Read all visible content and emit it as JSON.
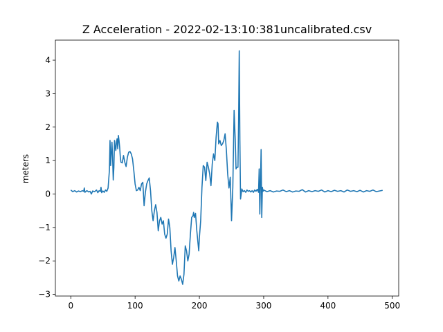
{
  "chart_data": {
    "type": "line",
    "title": "Z Acceleration - 2022-02-13:10:381uncalibrated.csv",
    "xlabel": "",
    "ylabel": "meters",
    "xlim": [
      -24,
      510
    ],
    "ylim": [
      -3.05,
      4.6
    ],
    "xticks": [
      0,
      100,
      200,
      300,
      400,
      500
    ],
    "yticks": [
      -3,
      -2,
      -1,
      0,
      1,
      2,
      3,
      4
    ],
    "grid": false,
    "line_color": "#1f77b4",
    "series": [
      {
        "points": [
          [
            0,
            0.12
          ],
          [
            3,
            0.07
          ],
          [
            6,
            0.1
          ],
          [
            9,
            0.06
          ],
          [
            12,
            0.09
          ],
          [
            15,
            0.07
          ],
          [
            18,
            0.1
          ],
          [
            20,
            0.08
          ],
          [
            21,
            0.18
          ],
          [
            22,
            0.05
          ],
          [
            25,
            0.1
          ],
          [
            28,
            0.06
          ],
          [
            30,
            0.08
          ],
          [
            32,
            0.0
          ],
          [
            34,
            0.09
          ],
          [
            37,
            0.07
          ],
          [
            40,
            0.12
          ],
          [
            42,
            0.04
          ],
          [
            44,
            0.1
          ],
          [
            46,
            0.08
          ],
          [
            47,
            0.2
          ],
          [
            48,
            0.04
          ],
          [
            50,
            0.09
          ],
          [
            52,
            0.05
          ],
          [
            54,
            0.12
          ],
          [
            56,
            0.08
          ],
          [
            58,
            0.18
          ],
          [
            60,
            0.7
          ],
          [
            61,
            1.6
          ],
          [
            62,
            0.85
          ],
          [
            63,
            1.2
          ],
          [
            64,
            1.55
          ],
          [
            65,
            1.1
          ],
          [
            66,
            0.42
          ],
          [
            67,
            0.8
          ],
          [
            68,
            1.6
          ],
          [
            69,
            1.4
          ],
          [
            70,
            1.3
          ],
          [
            71,
            1.55
          ],
          [
            72,
            1.65
          ],
          [
            73,
            1.35
          ],
          [
            74,
            1.75
          ],
          [
            75,
            1.6
          ],
          [
            76,
            1.4
          ],
          [
            77,
            1.1
          ],
          [
            78,
            0.95
          ],
          [
            80,
            0.93
          ],
          [
            82,
            1.15
          ],
          [
            84,
            0.95
          ],
          [
            86,
            0.82
          ],
          [
            88,
            1.1
          ],
          [
            90,
            1.25
          ],
          [
            92,
            1.27
          ],
          [
            94,
            1.2
          ],
          [
            96,
            1.05
          ],
          [
            98,
            0.7
          ],
          [
            100,
            0.3
          ],
          [
            102,
            0.1
          ],
          [
            104,
            0.12
          ],
          [
            106,
            0.2
          ],
          [
            108,
            0.1
          ],
          [
            110,
            0.3
          ],
          [
            112,
            0.35
          ],
          [
            114,
            -0.35
          ],
          [
            116,
            0.05
          ],
          [
            118,
            0.3
          ],
          [
            120,
            0.4
          ],
          [
            122,
            0.48
          ],
          [
            124,
            0.1
          ],
          [
            126,
            -0.5
          ],
          [
            128,
            -0.8
          ],
          [
            130,
            -0.5
          ],
          [
            132,
            -0.32
          ],
          [
            134,
            -0.55
          ],
          [
            136,
            -1.1
          ],
          [
            138,
            -0.8
          ],
          [
            140,
            -0.7
          ],
          [
            142,
            -0.9
          ],
          [
            144,
            -0.8
          ],
          [
            146,
            -1.2
          ],
          [
            148,
            -1.32
          ],
          [
            150,
            -1.2
          ],
          [
            152,
            -0.75
          ],
          [
            154,
            -1.0
          ],
          [
            156,
            -1.7
          ],
          [
            158,
            -2.1
          ],
          [
            160,
            -1.9
          ],
          [
            162,
            -1.6
          ],
          [
            164,
            -2.0
          ],
          [
            166,
            -2.45
          ],
          [
            168,
            -2.6
          ],
          [
            170,
            -2.45
          ],
          [
            172,
            -2.55
          ],
          [
            174,
            -2.7
          ],
          [
            176,
            -2.4
          ],
          [
            178,
            -1.55
          ],
          [
            180,
            -1.7
          ],
          [
            182,
            -2.0
          ],
          [
            184,
            -1.8
          ],
          [
            186,
            -1.2
          ],
          [
            188,
            -0.7
          ],
          [
            190,
            -0.65
          ],
          [
            191,
            -0.55
          ],
          [
            192,
            -0.7
          ],
          [
            194,
            -0.58
          ],
          [
            196,
            -1.1
          ],
          [
            198,
            -1.5
          ],
          [
            199,
            -1.7
          ],
          [
            200,
            -1.3
          ],
          [
            202,
            -0.8
          ],
          [
            204,
            0.2
          ],
          [
            206,
            0.85
          ],
          [
            208,
            0.8
          ],
          [
            210,
            0.4
          ],
          [
            212,
            0.95
          ],
          [
            214,
            0.8
          ],
          [
            216,
            0.6
          ],
          [
            218,
            0.25
          ],
          [
            220,
            0.9
          ],
          [
            222,
            1.2
          ],
          [
            224,
            1.0
          ],
          [
            226,
            1.7
          ],
          [
            228,
            2.15
          ],
          [
            229,
            2.1
          ],
          [
            230,
            1.5
          ],
          [
            232,
            1.6
          ],
          [
            234,
            1.45
          ],
          [
            236,
            1.5
          ],
          [
            238,
            1.6
          ],
          [
            240,
            1.8
          ],
          [
            242,
            1.3
          ],
          [
            244,
            0.6
          ],
          [
            246,
            0.18
          ],
          [
            248,
            0.5
          ],
          [
            250,
            -0.8
          ],
          [
            252,
            0.2
          ],
          [
            254,
            2.5
          ],
          [
            256,
            1.5
          ],
          [
            257,
            0.75
          ],
          [
            258,
            0.8
          ],
          [
            260,
            0.8
          ],
          [
            261,
            2.2
          ],
          [
            262,
            4.28
          ],
          [
            263,
            1.6
          ],
          [
            264,
            -0.15
          ],
          [
            266,
            0.15
          ],
          [
            268,
            0.07
          ],
          [
            270,
            0.1
          ],
          [
            272,
            0.05
          ],
          [
            274,
            0.12
          ],
          [
            276,
            0.08
          ],
          [
            278,
            0.1
          ],
          [
            280,
            0.06
          ],
          [
            282,
            0.1
          ],
          [
            284,
            0.05
          ],
          [
            286,
            0.12
          ],
          [
            288,
            0.08
          ],
          [
            290,
            0.14
          ],
          [
            292,
            0.05
          ],
          [
            293,
            0.75
          ],
          [
            294,
            -0.6
          ],
          [
            295,
            0.35
          ],
          [
            296,
            1.33
          ],
          [
            297,
            -0.7
          ],
          [
            298,
            0.2
          ],
          [
            299,
            0.08
          ],
          [
            300,
            0.12
          ],
          [
            305,
            0.07
          ],
          [
            310,
            0.1
          ],
          [
            315,
            0.06
          ],
          [
            320,
            0.09
          ],
          [
            325,
            0.08
          ],
          [
            330,
            0.12
          ],
          [
            335,
            0.07
          ],
          [
            340,
            0.1
          ],
          [
            345,
            0.06
          ],
          [
            350,
            0.09
          ],
          [
            355,
            0.08
          ],
          [
            360,
            0.13
          ],
          [
            365,
            0.06
          ],
          [
            370,
            0.1
          ],
          [
            375,
            0.07
          ],
          [
            380,
            0.1
          ],
          [
            385,
            0.08
          ],
          [
            390,
            0.12
          ],
          [
            395,
            0.06
          ],
          [
            400,
            0.1
          ],
          [
            405,
            0.07
          ],
          [
            410,
            0.11
          ],
          [
            415,
            0.08
          ],
          [
            420,
            0.1
          ],
          [
            425,
            0.06
          ],
          [
            430,
            0.12
          ],
          [
            435,
            0.08
          ],
          [
            440,
            0.1
          ],
          [
            445,
            0.07
          ],
          [
            450,
            0.11
          ],
          [
            455,
            0.06
          ],
          [
            460,
            0.1
          ],
          [
            465,
            0.08
          ],
          [
            470,
            0.12
          ],
          [
            475,
            0.07
          ],
          [
            480,
            0.09
          ],
          [
            485,
            0.11
          ]
        ]
      }
    ]
  }
}
